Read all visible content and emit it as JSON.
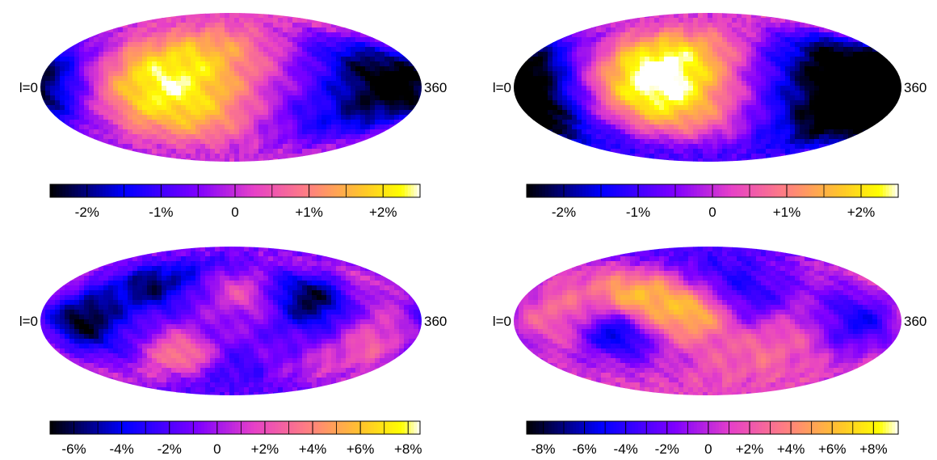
{
  "chart_data": [
    {
      "type": "heatmap",
      "projection": "mollweide",
      "lon_labels": {
        "left": "l=0",
        "right": "360"
      },
      "colorbar": {
        "min": -2.5,
        "max": 2.5,
        "ticks": [
          "-2%",
          "-1%",
          "0",
          "+1%",
          "+2%"
        ],
        "tick_values": [
          -2,
          -1,
          0,
          1,
          2
        ]
      },
      "blobs": [
        {
          "lon": 120,
          "lat": 5,
          "sigma": 60,
          "value": 2.6
        },
        {
          "lon": 330,
          "lat": 5,
          "sigma": 45,
          "value": -2.4
        },
        {
          "lon": 20,
          "lat": 0,
          "sigma": 35,
          "value": -0.8
        },
        {
          "lon": 240,
          "lat": -40,
          "sigma": 35,
          "value": -0.6
        }
      ],
      "base": -0.2
    },
    {
      "type": "heatmap",
      "projection": "mollweide",
      "lon_labels": {
        "left": "l=0",
        "right": "360"
      },
      "colorbar": {
        "min": -2.5,
        "max": 2.5,
        "ticks": [
          "-2%",
          "-1%",
          "0",
          "+1%",
          "+2%"
        ],
        "tick_values": [
          -2,
          -1,
          0,
          1,
          2
        ]
      },
      "blobs": [
        {
          "lon": 130,
          "lat": 25,
          "sigma": 55,
          "value": 2.8
        },
        {
          "lon": 140,
          "lat": -20,
          "sigma": 50,
          "value": 1.0
        },
        {
          "lon": 20,
          "lat": -10,
          "sigma": 45,
          "value": -1.8
        },
        {
          "lon": 310,
          "lat": 0,
          "sigma": 55,
          "value": -2.2
        }
      ],
      "base": -0.6
    },
    {
      "type": "heatmap",
      "projection": "mollweide",
      "lon_labels": {
        "left": "l=0",
        "right": "360"
      },
      "colorbar": {
        "min": -7,
        "max": 8.5,
        "ticks": [
          "-6%",
          "-4%",
          "-2%",
          "0",
          "+2%",
          "+4%",
          "+6%",
          "+8%"
        ],
        "tick_values": [
          -6,
          -4,
          -2,
          0,
          2,
          4,
          6,
          8
        ]
      },
      "blobs": [
        {
          "lon": 40,
          "lat": 0,
          "sigma": 25,
          "value": -6.0
        },
        {
          "lon": 100,
          "lat": 45,
          "sigma": 25,
          "value": -4.5
        },
        {
          "lon": 255,
          "lat": 30,
          "sigma": 28,
          "value": -6.0
        },
        {
          "lon": 130,
          "lat": -45,
          "sigma": 22,
          "value": 5.5
        },
        {
          "lon": 170,
          "lat": -65,
          "sigma": 20,
          "value": -4.0
        },
        {
          "lon": 200,
          "lat": 40,
          "sigma": 25,
          "value": 4.0
        },
        {
          "lon": 320,
          "lat": -30,
          "sigma": 30,
          "value": 3.5
        },
        {
          "lon": 330,
          "lat": 55,
          "sigma": 25,
          "value": 3.0
        }
      ],
      "base": -1.0
    },
    {
      "type": "heatmap",
      "projection": "mollweide",
      "lon_labels": {
        "left": "l=0",
        "right": "360"
      },
      "colorbar": {
        "min": -8.8,
        "max": 9.2,
        "ticks": [
          "-8%",
          "-6%",
          "-4%",
          "-2%",
          "0",
          "+2%",
          "+4%",
          "+6%",
          "+8%"
        ],
        "tick_values": [
          -8,
          -6,
          -4,
          -2,
          0,
          2,
          4,
          6,
          8
        ]
      },
      "blobs": [
        {
          "lon": 95,
          "lat": -15,
          "sigma": 22,
          "value": -7.5
        },
        {
          "lon": 115,
          "lat": 30,
          "sigma": 28,
          "value": 6.5
        },
        {
          "lon": 170,
          "lat": 10,
          "sigma": 24,
          "value": 5.5
        },
        {
          "lon": 220,
          "lat": 30,
          "sigma": 26,
          "value": -5.0
        },
        {
          "lon": 320,
          "lat": 0,
          "sigma": 28,
          "value": -5.5
        },
        {
          "lon": 160,
          "lat": 70,
          "sigma": 30,
          "value": -4.5
        },
        {
          "lon": 30,
          "lat": 10,
          "sigma": 25,
          "value": 2.5
        },
        {
          "lon": 250,
          "lat": -35,
          "sigma": 35,
          "value": 2.5
        }
      ],
      "base": 0.5
    }
  ]
}
